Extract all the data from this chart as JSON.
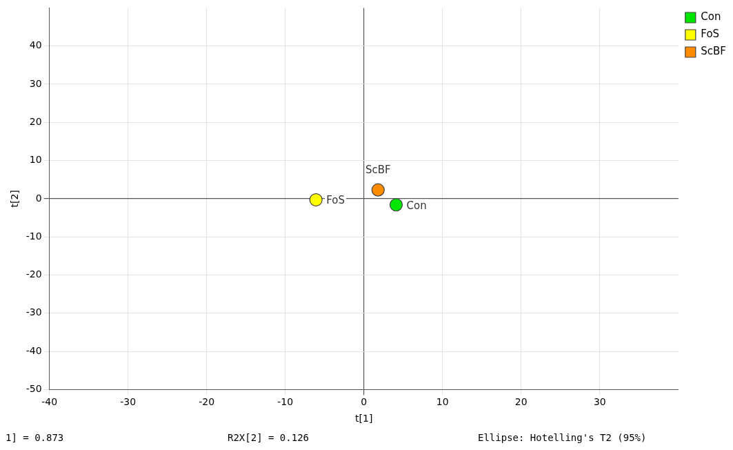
{
  "chart_data": {
    "type": "scatter",
    "xlabel": "t[1]",
    "ylabel": "t[2]",
    "series": [
      {
        "name": "Con",
        "color": "#00e600",
        "x": [
          4.1
        ],
        "values": [
          -1.6
        ]
      },
      {
        "name": "FoS",
        "color": "#ffff00",
        "x": [
          -6.1
        ],
        "values": [
          -0.3
        ]
      },
      {
        "name": "ScBF",
        "color": "#ff8c00",
        "x": [
          1.8
        ],
        "values": [
          2.3
        ]
      }
    ],
    "xlim": [
      -40,
      40
    ],
    "xticks": [
      -40,
      -30,
      -20,
      -10,
      0,
      10,
      20,
      30
    ],
    "ylim": [
      -50,
      50
    ],
    "yticks": [
      -50,
      -40,
      -30,
      -20,
      -10,
      0,
      10,
      20,
      30,
      40
    ],
    "grid": true,
    "legend": "top right",
    "marker": "circle",
    "annotations": [
      "1] = 0.873",
      "R2X[2] = 0.126",
      "Ellipse: Hotelling's T2 (95%)"
    ]
  }
}
